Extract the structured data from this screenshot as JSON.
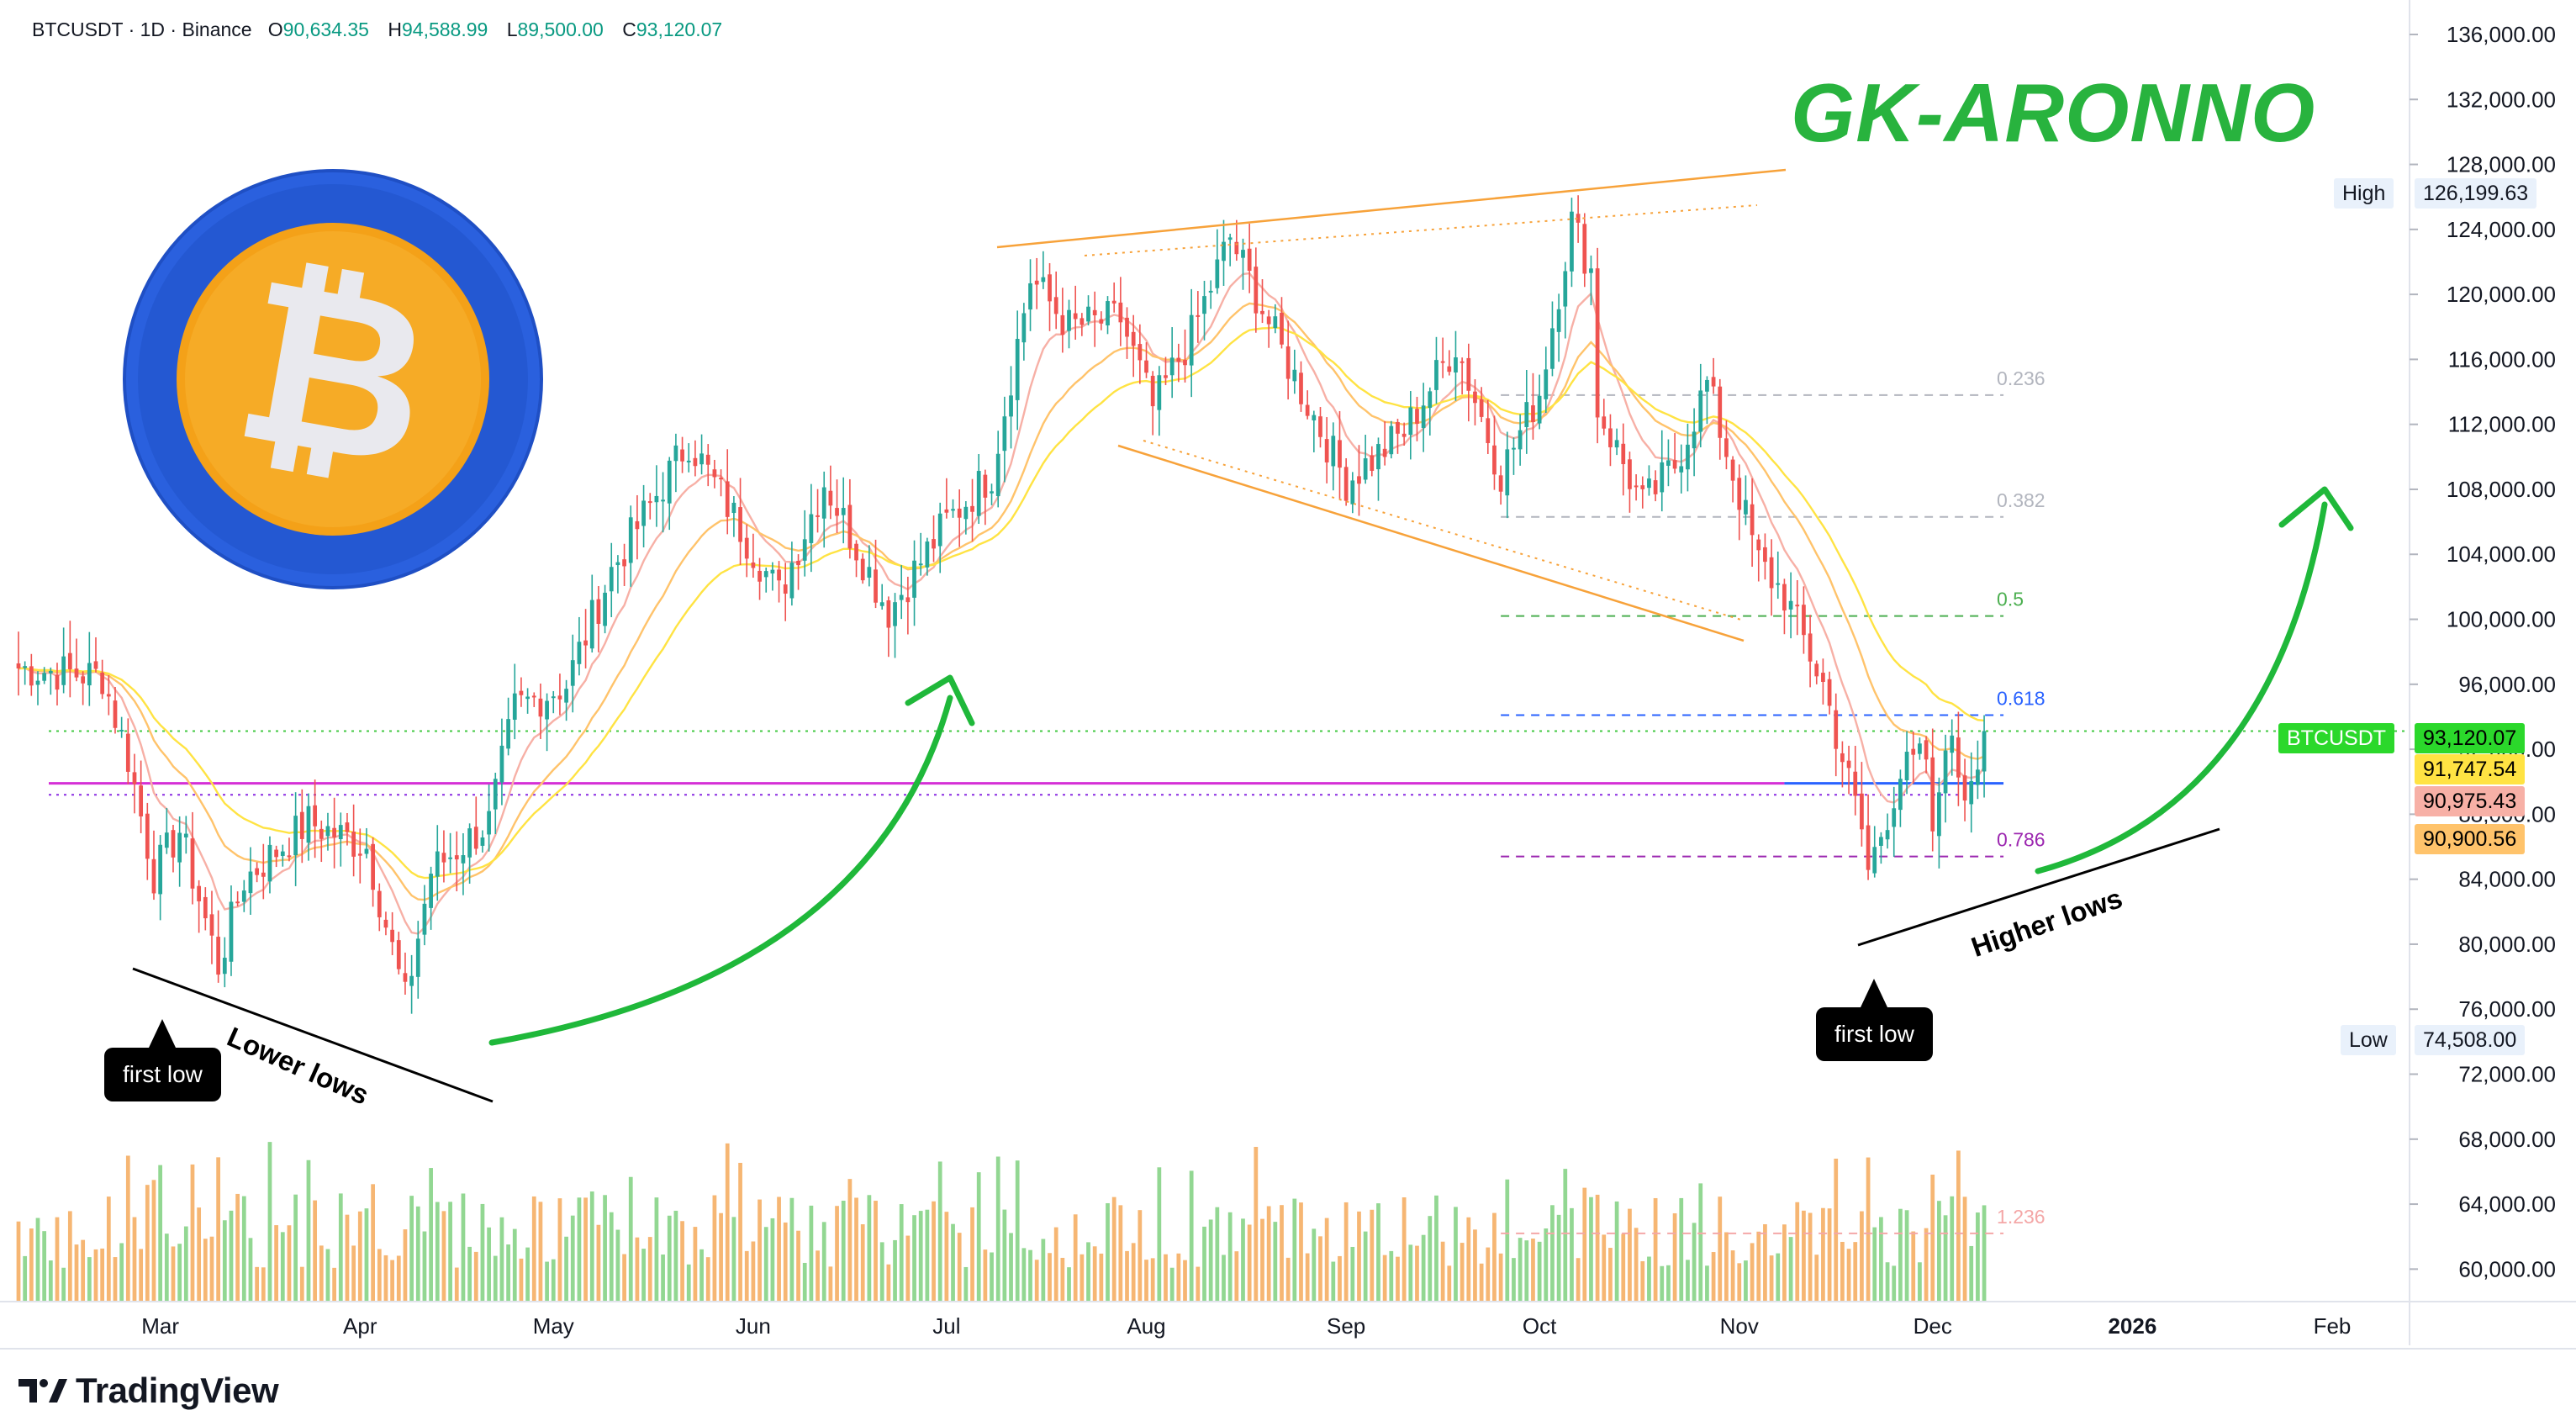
{
  "header": {
    "symbol": "BTCUSDT · 1D · Binance",
    "open_label": "O",
    "open": "90,634.35",
    "high_label": "H",
    "high": "94,588.99",
    "low_label": "L",
    "low": "89,500.00",
    "close_label": "C",
    "close": "93,120.07"
  },
  "brand": {
    "name": "TradingView"
  },
  "annotations": {
    "title": "GK-ARONNO",
    "first_low_left": "first low",
    "first_low_right": "first low",
    "lower_lows": "Lower lows",
    "higher_lows": "Higher lows"
  },
  "price_tags": {
    "high_label": "High",
    "high_value": "126,199.63",
    "low_label": "Low",
    "low_value": "74,508.00",
    "symbol": "BTCUSDT",
    "last": "93,120.07",
    "ma1": "91,747.54",
    "ma2": "90,975.43",
    "ma3": "90,900.56"
  },
  "colors": {
    "up": "#089981",
    "down": "#f23645",
    "candle_up": "#26a69a",
    "candle_down": "#ef5350",
    "vol_up": "#7fd07f",
    "vol_down": "#f5a95a",
    "green_arrow": "#1fb83a",
    "orange_line": "#f7a23a",
    "magenta": "#d52fd6",
    "blue": "#2962ff",
    "ma1": "#ffe343",
    "ma2": "#f7b0a6",
    "ma3": "#ffc36b"
  },
  "chart_data": {
    "type": "candlestick",
    "ylim": [
      58000,
      137500
    ],
    "y_ticks": [
      "136,000.00",
      "132,000.00",
      "128,000.00",
      "124,000.00",
      "120,000.00",
      "116,000.00",
      "112,000.00",
      "108,000.00",
      "104,000.00",
      "100,000.00",
      "96,000.00",
      "92,000.00",
      "88,000.00",
      "84,000.00",
      "80,000.00",
      "76,000.00",
      "72,000.00",
      "68,000.00",
      "64,000.00",
      "60,000.00"
    ],
    "x_ticks": [
      {
        "label": "Mar",
        "date": "2025-03-01"
      },
      {
        "label": "Apr",
        "date": "2025-04-01"
      },
      {
        "label": "May",
        "date": "2025-05-01"
      },
      {
        "label": "Jun",
        "date": "2025-06-01"
      },
      {
        "label": "Jul",
        "date": "2025-07-01"
      },
      {
        "label": "Aug",
        "date": "2025-08-01"
      },
      {
        "label": "Sep",
        "date": "2025-09-01"
      },
      {
        "label": "Oct",
        "date": "2025-10-01"
      },
      {
        "label": "Nov",
        "date": "2025-11-01"
      },
      {
        "label": "Dec",
        "date": "2025-12-01"
      },
      {
        "label": "2026",
        "date": "2026-01-01"
      },
      {
        "label": "Feb",
        "date": "2026-02-01"
      }
    ],
    "x_range": [
      "2025-02-07",
      "2026-02-13"
    ],
    "close_path": [
      [
        "2025-02-07",
        97000
      ],
      [
        "2025-02-20",
        96500
      ],
      [
        "2025-02-24",
        91500
      ],
      [
        "2025-02-28",
        84300
      ],
      [
        "2025-03-04",
        87000
      ],
      [
        "2025-03-10",
        78700
      ],
      [
        "2025-03-14",
        84000
      ],
      [
        "2025-03-24",
        87500
      ],
      [
        "2025-04-02",
        86000
      ],
      [
        "2025-04-08",
        76500
      ],
      [
        "2025-04-12",
        84500
      ],
      [
        "2025-04-21",
        87500
      ],
      [
        "2025-04-25",
        94500
      ],
      [
        "2025-05-03",
        96000
      ],
      [
        "2025-05-10",
        103000
      ],
      [
        "2025-05-22",
        111000
      ],
      [
        "2025-05-28",
        107000
      ],
      [
        "2025-06-05",
        101500
      ],
      [
        "2025-06-09",
        105500
      ],
      [
        "2025-06-12",
        108500
      ],
      [
        "2025-06-22",
        100500
      ],
      [
        "2025-07-01",
        106000
      ],
      [
        "2025-07-08",
        109000
      ],
      [
        "2025-07-14",
        121000
      ],
      [
        "2025-07-20",
        118000
      ],
      [
        "2025-07-28",
        118500
      ],
      [
        "2025-08-02",
        113000
      ],
      [
        "2025-08-08",
        117500
      ],
      [
        "2025-08-14",
        123500
      ],
      [
        "2025-08-22",
        116500
      ],
      [
        "2025-09-01",
        108500
      ],
      [
        "2025-09-10",
        111500
      ],
      [
        "2025-09-18",
        117000
      ],
      [
        "2025-09-25",
        109000
      ],
      [
        "2025-10-01",
        114000
      ],
      [
        "2025-10-06",
        124500
      ],
      [
        "2025-10-09",
        121500
      ],
      [
        "2025-10-10",
        113000
      ],
      [
        "2025-10-17",
        107000
      ],
      [
        "2025-10-22",
        109500
      ],
      [
        "2025-10-27",
        114500
      ],
      [
        "2025-11-04",
        103500
      ],
      [
        "2025-11-08",
        101500
      ],
      [
        "2025-11-14",
        96000
      ],
      [
        "2025-11-20",
        87000
      ],
      [
        "2025-11-21",
        84500
      ],
      [
        "2025-11-26",
        90500
      ],
      [
        "2025-11-30",
        91500
      ],
      [
        "2025-12-01",
        86000
      ],
      [
        "2025-12-03",
        93000
      ],
      [
        "2025-12-06",
        89500
      ],
      [
        "2025-12-09",
        93120
      ]
    ],
    "fib_levels": [
      {
        "label": "0.236",
        "value": 113800,
        "color": "#b2b5be"
      },
      {
        "label": "0.382",
        "value": 106300,
        "color": "#b2b5be"
      },
      {
        "label": "0.5",
        "value": 100200,
        "color": "#4caf50"
      },
      {
        "label": "0.618",
        "value": 94100,
        "color": "#2962ff"
      },
      {
        "label": "0.786",
        "value": 85400,
        "color": "#9c27b0"
      },
      {
        "label": "1.236",
        "value": 62200,
        "color": "#f4a7a7"
      }
    ],
    "horizontal_levels": [
      {
        "value": 89900,
        "color": "#d52fd6",
        "style": "solid"
      },
      {
        "value": 89200,
        "color": "#8a2be2",
        "style": "dotted"
      },
      {
        "value": 93120,
        "color": "#43c943",
        "style": "dotted"
      }
    ]
  }
}
